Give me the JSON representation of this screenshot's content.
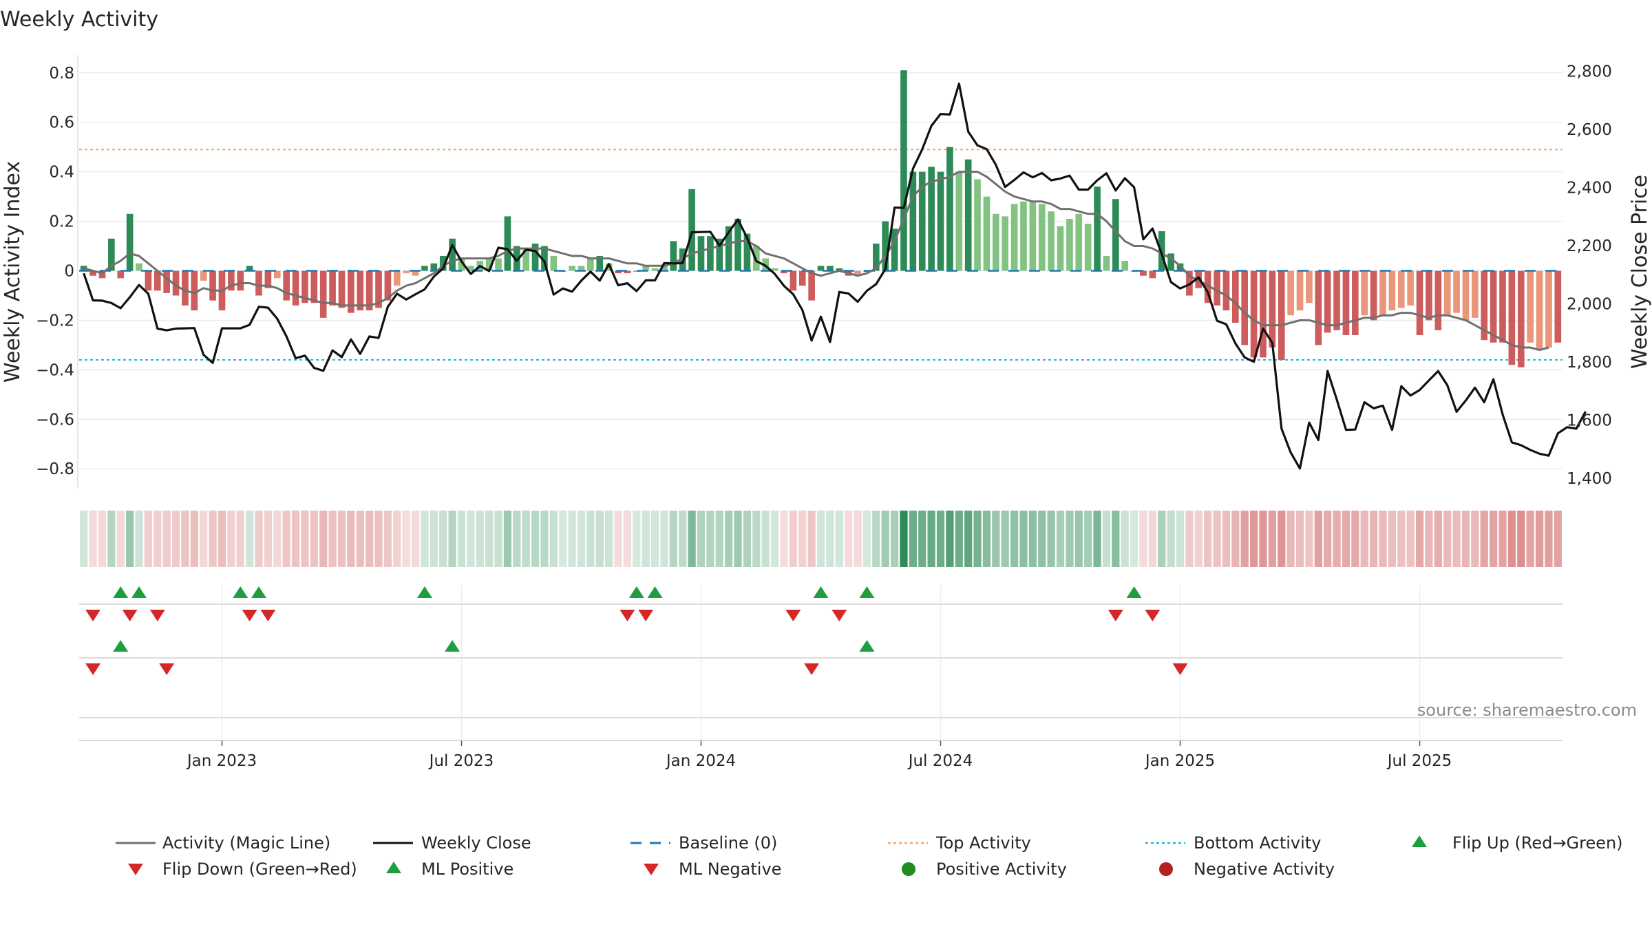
{
  "chart_data": {
    "type": "bar",
    "title": "Weekly Activity",
    "source": "source: sharemaestro.com",
    "ylabel_left": "Weekly Activity Index",
    "ylabel_right": "Weekly Close Price",
    "yticks_left": [
      "0.8",
      "0.6",
      "0.4",
      "0.2",
      "0",
      "−0.2",
      "−0.4",
      "−0.6",
      "−0.8"
    ],
    "yticks_left_values": [
      0.8,
      0.6,
      0.4,
      0.2,
      0,
      -0.2,
      -0.4,
      -0.6,
      -0.8
    ],
    "ylim_left": [
      -0.88,
      0.83
    ],
    "yticks_right": [
      "2,800",
      "2,600",
      "2,400",
      "2,200",
      "2,000",
      "1,800",
      "1,600",
      "1,400"
    ],
    "yticks_right_values": [
      2800,
      2600,
      2400,
      2200,
      2000,
      1800,
      1600,
      1400
    ],
    "ylim_right": [
      1365,
      2820
    ],
    "xticks": [
      "Jan 2023",
      "Jul 2023",
      "Jan 2024",
      "Jul 2024",
      "Jan 2025",
      "Jul 2025"
    ],
    "xticks_week_index": [
      15,
      41,
      67,
      93,
      119,
      145
    ],
    "top_activity": 0.49,
    "bottom_activity": -0.36,
    "activity": [
      0.02,
      -0.02,
      -0.03,
      0.13,
      -0.03,
      0.23,
      0.03,
      -0.08,
      -0.08,
      -0.09,
      -0.1,
      -0.14,
      -0.16,
      -0.04,
      -0.12,
      -0.16,
      -0.08,
      -0.08,
      0.02,
      -0.1,
      -0.07,
      -0.03,
      -0.12,
      -0.14,
      -0.13,
      -0.13,
      -0.19,
      -0.14,
      -0.15,
      -0.17,
      -0.16,
      -0.16,
      -0.15,
      -0.12,
      -0.06,
      -0.01,
      -0.02,
      0.02,
      0.03,
      0.06,
      0.13,
      0.05,
      0.02,
      0.04,
      0.05,
      0.05,
      0.22,
      0.1,
      0.09,
      0.11,
      0.1,
      0.06,
      0.0,
      0.02,
      0.02,
      0.05,
      0.06,
      0.03,
      -0.01,
      -0.01,
      0.0,
      0.02,
      0.01,
      0.02,
      0.12,
      0.09,
      0.33,
      0.14,
      0.14,
      0.13,
      0.18,
      0.21,
      0.15,
      0.1,
      0.05,
      0.01,
      -0.01,
      -0.08,
      -0.06,
      -0.12,
      0.02,
      0.02,
      0.01,
      -0.02,
      -0.02,
      0.0,
      0.11,
      0.2,
      0.17,
      0.81,
      0.4,
      0.4,
      0.42,
      0.4,
      0.5,
      0.4,
      0.45,
      0.37,
      0.3,
      0.23,
      0.22,
      0.27,
      0.28,
      0.28,
      0.27,
      0.24,
      0.18,
      0.21,
      0.23,
      0.19,
      0.34,
      0.06,
      0.29,
      0.04,
      0.0,
      -0.02,
      -0.03,
      0.16,
      0.07,
      0.03,
      -0.1,
      -0.07,
      -0.13,
      -0.14,
      -0.16,
      -0.21,
      -0.3,
      -0.35,
      -0.35,
      -0.31,
      -0.36,
      -0.18,
      -0.16,
      -0.13,
      -0.3,
      -0.25,
      -0.24,
      -0.26,
      -0.26,
      -0.18,
      -0.2,
      -0.18,
      -0.16,
      -0.15,
      -0.14,
      -0.26,
      -0.2,
      -0.24,
      -0.18,
      -0.17,
      -0.2,
      -0.19,
      -0.28,
      -0.29,
      -0.29,
      -0.38,
      -0.39,
      -0.29,
      -0.32,
      -0.31,
      -0.29
    ],
    "magic_line": [
      0.01,
      0.0,
      -0.01,
      0.02,
      0.04,
      0.07,
      0.06,
      0.03,
      0.0,
      -0.03,
      -0.06,
      -0.08,
      -0.09,
      -0.07,
      -0.08,
      -0.08,
      -0.06,
      -0.05,
      -0.05,
      -0.06,
      -0.06,
      -0.07,
      -0.09,
      -0.1,
      -0.11,
      -0.12,
      -0.13,
      -0.13,
      -0.14,
      -0.14,
      -0.14,
      -0.14,
      -0.13,
      -0.11,
      -0.08,
      -0.06,
      -0.05,
      -0.03,
      -0.01,
      0.02,
      0.04,
      0.05,
      0.05,
      0.05,
      0.05,
      0.06,
      0.08,
      0.09,
      0.09,
      0.09,
      0.09,
      0.08,
      0.07,
      0.06,
      0.06,
      0.05,
      0.05,
      0.05,
      0.04,
      0.03,
      0.03,
      0.02,
      0.02,
      0.02,
      0.03,
      0.05,
      0.07,
      0.08,
      0.09,
      0.1,
      0.11,
      0.12,
      0.12,
      0.1,
      0.07,
      0.06,
      0.05,
      0.03,
      0.01,
      -0.01,
      -0.02,
      -0.01,
      0.0,
      -0.01,
      -0.02,
      -0.01,
      0.01,
      0.06,
      0.12,
      0.21,
      0.3,
      0.34,
      0.36,
      0.37,
      0.38,
      0.4,
      0.4,
      0.4,
      0.38,
      0.35,
      0.32,
      0.3,
      0.29,
      0.28,
      0.28,
      0.27,
      0.25,
      0.25,
      0.24,
      0.23,
      0.23,
      0.2,
      0.16,
      0.12,
      0.1,
      0.1,
      0.09,
      0.07,
      0.05,
      0.02,
      -0.02,
      -0.04,
      -0.06,
      -0.08,
      -0.1,
      -0.13,
      -0.17,
      -0.2,
      -0.22,
      -0.22,
      -0.22,
      -0.21,
      -0.2,
      -0.2,
      -0.21,
      -0.22,
      -0.22,
      -0.21,
      -0.2,
      -0.19,
      -0.19,
      -0.18,
      -0.18,
      -0.17,
      -0.17,
      -0.18,
      -0.19,
      -0.18,
      -0.18,
      -0.19,
      -0.2,
      -0.22,
      -0.24,
      -0.26,
      -0.28,
      -0.3,
      -0.31,
      -0.31,
      -0.32,
      -0.31
    ],
    "weekly_close": [
      2105,
      2012,
      2011,
      2003,
      1985,
      2023,
      2065,
      2035,
      1915,
      1909,
      1915,
      1916,
      1917,
      1825,
      1797,
      1916,
      1916,
      1916,
      1928,
      1990,
      1987,
      1949,
      1888,
      1813,
      1822,
      1780,
      1770,
      1840,
      1817,
      1878,
      1828,
      1888,
      1883,
      1990,
      2035,
      2015,
      2033,
      2050,
      2094,
      2122,
      2202,
      2146,
      2103,
      2130,
      2113,
      2193,
      2188,
      2148,
      2186,
      2182,
      2146,
      2032,
      2053,
      2042,
      2080,
      2111,
      2080,
      2137,
      2064,
      2071,
      2044,
      2081,
      2081,
      2140,
      2139,
      2140,
      2246,
      2247,
      2248,
      2200,
      2246,
      2290,
      2227,
      2147,
      2131,
      2103,
      2062,
      2033,
      1979,
      1874,
      1956,
      1869,
      2041,
      2036,
      2007,
      2045,
      2068,
      2120,
      2331,
      2330,
      2465,
      2531,
      2612,
      2653,
      2651,
      2757,
      2592,
      2545,
      2532,
      2478,
      2402,
      2426,
      2452,
      2435,
      2450,
      2425,
      2431,
      2441,
      2393,
      2393,
      2425,
      2449,
      2390,
      2432,
      2401,
      2222,
      2259,
      2172,
      2075,
      2053,
      2067,
      2091,
      2040,
      1942,
      1930,
      1864,
      1816,
      1801,
      1915,
      1866,
      1571,
      1489,
      1434,
      1592,
      1532,
      1769,
      1671,
      1567,
      1568,
      1662,
      1641,
      1650,
      1567,
      1717,
      1685,
      1704,
      1737,
      1769,
      1720,
      1629,
      1668,
      1712,
      1662,
      1741,
      1620,
      1524,
      1514,
      1498,
      1485,
      1478,
      1555,
      1576,
      1571,
      1630
    ],
    "flip_up_weeks": [
      4,
      6,
      17,
      19,
      37,
      60,
      62,
      80,
      85,
      114
    ],
    "flip_down_weeks": [
      1,
      5,
      8,
      18,
      20,
      59,
      61,
      77,
      82,
      112,
      116
    ],
    "ml_positive_weeks": [
      4,
      40,
      85
    ],
    "ml_negative_weeks": [
      1,
      9,
      79,
      119
    ],
    "legend": [
      "Activity (Magic Line)",
      "Weekly Close",
      "Baseline (0)",
      "Top Activity",
      "Bottom Activity",
      "Flip Up (Red→Green)",
      "Flip Down (Green→Red)",
      "ML Positive",
      "ML Negative",
      "Positive Activity",
      "Negative Activity"
    ],
    "colors": {
      "pos_strong": "#2e8b57",
      "pos_light": "#82c382",
      "neg_strong": "#cd5c5c",
      "neg_light": "#e9967a",
      "magic_line": "#707070",
      "close": "#111111",
      "baseline": "#1f77b4",
      "top": "#f4a460",
      "bottom": "#17becf",
      "flip_up": "#1e9e3e",
      "flip_down": "#d62728",
      "pos_dot": "#228b22",
      "neg_dot": "#b22222"
    }
  }
}
